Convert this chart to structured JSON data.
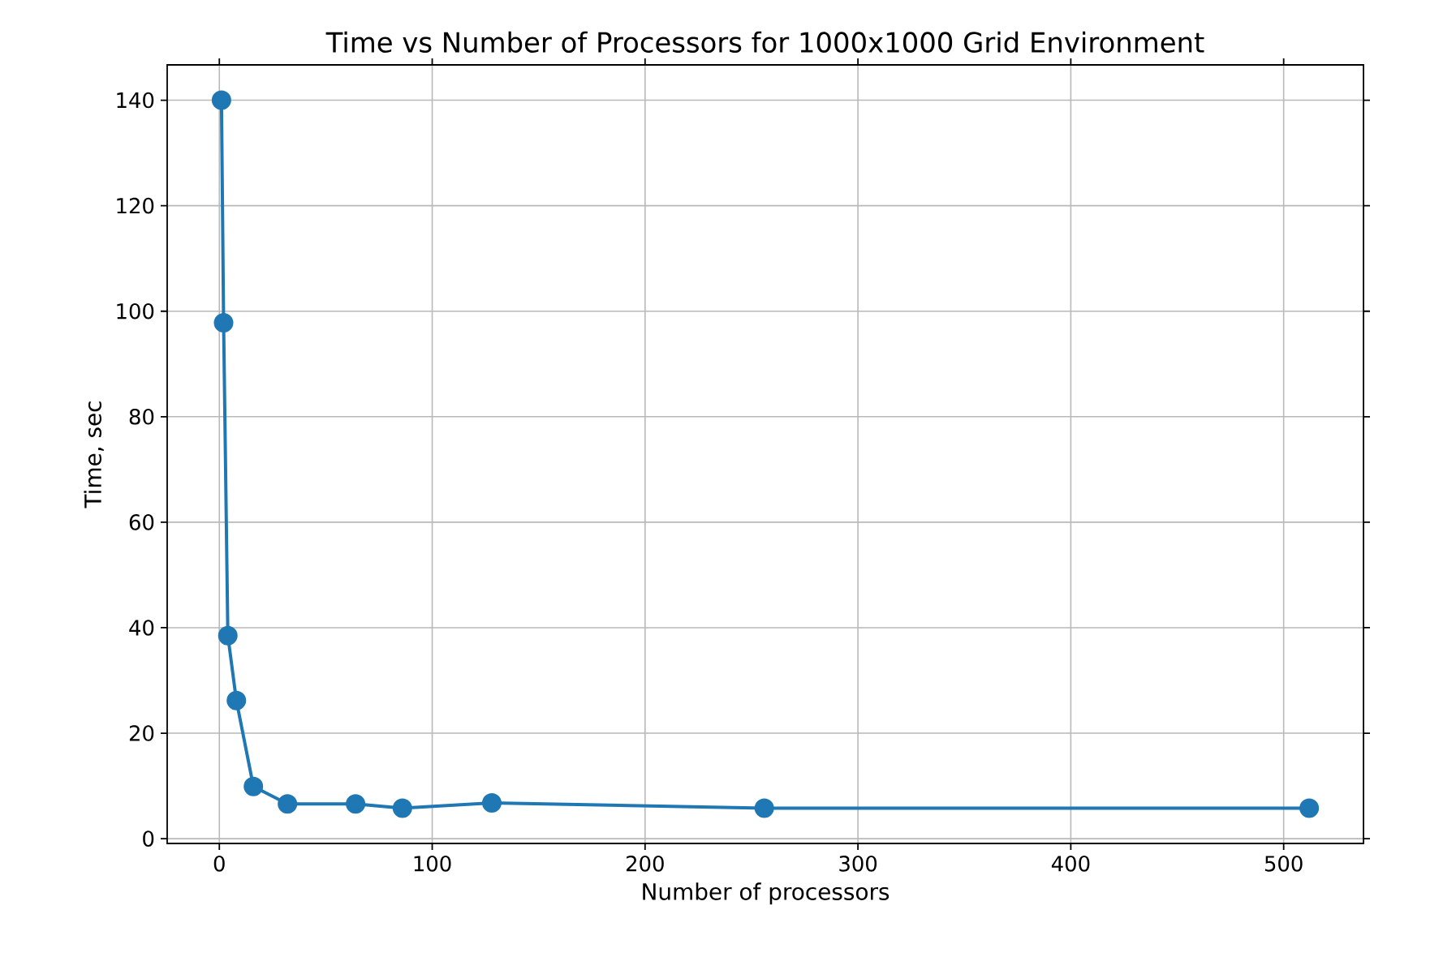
{
  "chart_data": {
    "type": "line",
    "title": "Time vs Number of Processors for 1000x1000 Grid Environment",
    "xlabel": "Number of processors",
    "ylabel": "Time, sec",
    "x": [
      1,
      2,
      4,
      8,
      16,
      32,
      64,
      86,
      128,
      256,
      512
    ],
    "series": [
      {
        "color": "#1f77b4",
        "values": [
          140,
          97.8,
          38.5,
          26.2,
          9.9,
          6.6,
          6.6,
          5.8,
          6.8,
          5.8,
          5.8
        ]
      }
    ],
    "xlim": [
      -24.5,
      537.5
    ],
    "ylim": [
      -0.9,
      146.7
    ],
    "xticks": [
      0,
      100,
      200,
      300,
      400,
      500
    ],
    "yticks": [
      0,
      20,
      40,
      60,
      80,
      100,
      120,
      140
    ],
    "grid": true,
    "marker": "circle",
    "line_style": "solid"
  }
}
